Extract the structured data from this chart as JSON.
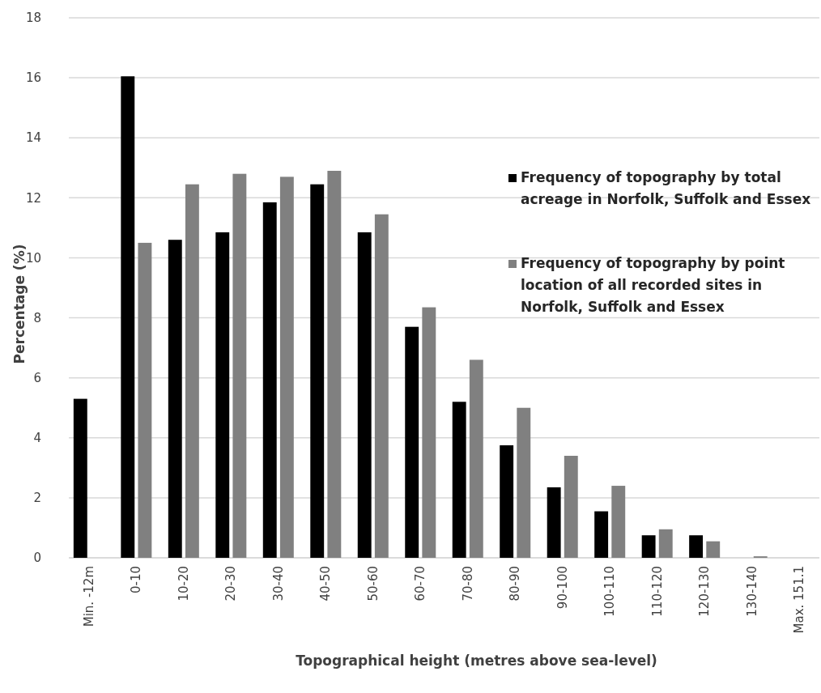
{
  "chart_data": {
    "type": "bar",
    "xlabel": "Topographical height (metres above sea-level)",
    "ylabel": "Percentage (%)",
    "categories": [
      "Min. -12m",
      "0-10",
      "10-20",
      "20-30",
      "30-40",
      "40-50",
      "50-60",
      "60-70",
      "70-80",
      "80-90",
      "90-100",
      "100-110",
      "110-120",
      "120-130",
      "130-140",
      "Max. 151.1"
    ],
    "series": [
      {
        "name": "Frequency of topography by total acreage in Norfolk, Suffolk and Essex",
        "color": "#000000",
        "values": [
          5.3,
          16.05,
          10.6,
          10.85,
          11.85,
          12.45,
          10.85,
          7.7,
          5.2,
          3.75,
          2.35,
          1.55,
          0.75,
          0.75,
          0,
          0
        ]
      },
      {
        "name": "Frequency of topography by point location of all recorded sites in Norfolk, Suffolk and Essex",
        "color": "#808080",
        "values": [
          null,
          10.5,
          12.45,
          12.8,
          12.7,
          12.9,
          11.45,
          8.35,
          6.6,
          5.0,
          3.4,
          2.4,
          0.95,
          0.55,
          0.05,
          0
        ]
      }
    ],
    "ylim": [
      0,
      18
    ],
    "yticks": [
      0,
      2,
      4,
      6,
      8,
      10,
      12,
      14,
      16,
      18
    ],
    "grid": "y",
    "legend": "right"
  }
}
